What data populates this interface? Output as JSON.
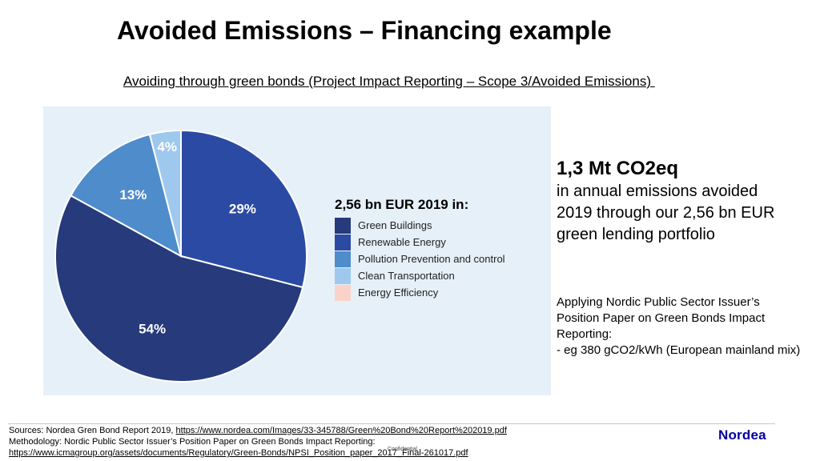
{
  "title": "Avoided Emissions – Financing example",
  "subtitle": "Avoiding through green bonds (Project Impact Reporting – Scope 3/Avoided Emissions) ",
  "legend": {
    "title": "2,56 bn EUR 2019 in:",
    "items": [
      {
        "label": "Green Buildings",
        "color": "#263a7c"
      },
      {
        "label": "Renewable Energy",
        "color": "#2b4aa3"
      },
      {
        "label": "Pollution Prevention and control",
        "color": "#4e8ccc"
      },
      {
        "label": "Clean Transportation",
        "color": "#9fc8ee"
      },
      {
        "label": "Energy Efficiency",
        "color": "#f9d3c8"
      }
    ]
  },
  "chart_data": {
    "type": "pie",
    "title": "2,56 bn EUR 2019 in:",
    "categories": [
      "Green Buildings",
      "Renewable Energy",
      "Pollution Prevention and control",
      "Clean Transportation",
      "Energy Efficiency"
    ],
    "values": [
      54,
      29,
      13,
      4,
      0
    ],
    "data_labels": [
      "54%",
      "29%",
      "13%",
      "4%",
      ""
    ],
    "colors": [
      "#263a7c",
      "#2b4aa3",
      "#4e8ccc",
      "#9fc8ee",
      "#f9d3c8"
    ],
    "legend_position": "right"
  },
  "right_panel": {
    "headline": "1,3 Mt CO2eq",
    "lines": [
      "in annual emissions avoided",
      "2019 through our 2,56 bn EUR",
      "green lending portfolio"
    ],
    "method_lines": [
      "Applying Nordic Public Sector Issuer’s",
      "Position Paper on Green Bonds Impact",
      "Reporting:",
      "- eg 380 gCO2/kWh (European mainland mix)"
    ]
  },
  "footer": {
    "sources_prefix": "Sources: Nordea Gren Bond Report 2019, ",
    "sources_link": "https://www.nordea.com/Images/33-345788/Green%20Bond%20Report%202019.pdf",
    "methodology": "Methodology: Nordic Public Sector Issuer’s Position Paper on Green Bonds Impact Reporting:",
    "methodology_link": "https://www.icmagroup.org/assets/documents/Regulatory/Green-Bonds/NPSI_Position_paper_2017_Final-261017.pdf",
    "confidential": "Confidential",
    "logo": "Nordea"
  }
}
